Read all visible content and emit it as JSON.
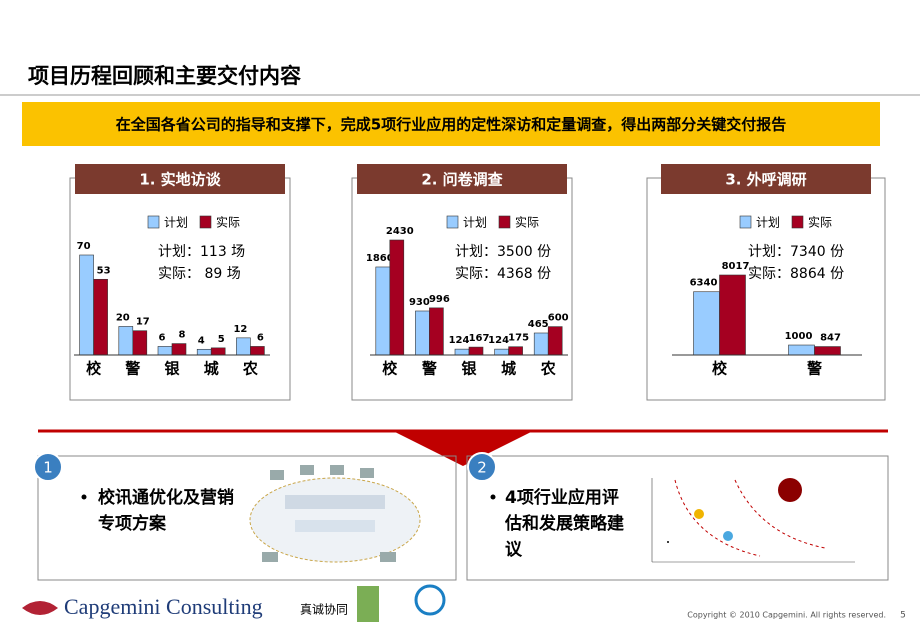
{
  "header": {
    "title": "项目历程回顾和主要交付内容"
  },
  "banner": "在全国各省公司的指导和支撑下，完成5项行业应用的定性深访和定量调查，得出两部分关键交付报告",
  "chart_data": [
    {
      "type": "bar",
      "title": "1. 实地访谈",
      "categories": [
        "校",
        "警",
        "银",
        "城",
        "农"
      ],
      "series": [
        {
          "name": "计划",
          "color": "#99ccff",
          "values": [
            70,
            20,
            6,
            4,
            12
          ]
        },
        {
          "name": "实际",
          "color": "#a50021",
          "values": [
            53,
            17,
            8,
            5,
            6
          ]
        }
      ],
      "summary": [
        "计划：113 场",
        "实际：  89 场"
      ]
    },
    {
      "type": "bar",
      "title": "2. 问卷调查",
      "categories": [
        "校",
        "警",
        "银",
        "城",
        "农"
      ],
      "series": [
        {
          "name": "计划",
          "color": "#99ccff",
          "values": [
            1860,
            930,
            124,
            124,
            465
          ]
        },
        {
          "name": "实际",
          "color": "#a50021",
          "values": [
            2430,
            996,
            167,
            175,
            600
          ]
        }
      ],
      "summary": [
        "计划：3500 份",
        "实际：4368 份"
      ]
    },
    {
      "type": "bar",
      "title": "3. 外呼调研",
      "categories": [
        "校",
        "警"
      ],
      "series": [
        {
          "name": "计划",
          "color": "#99ccff",
          "values": [
            6340,
            1000
          ]
        },
        {
          "name": "实际",
          "color": "#a50021",
          "values": [
            8017,
            847
          ]
        }
      ],
      "summary": [
        "计划：7340 份",
        "实际：8864 份"
      ]
    }
  ],
  "deliverables": [
    {
      "number": "1",
      "text": "校讯通优化及营销专项方案"
    },
    {
      "number": "2",
      "text": "4项行业应用评估和发展策略建议"
    }
  ],
  "footer": {
    "brand": "Capgemini Consulting",
    "slogan": "真诚协同",
    "copyright": "Copyright © 2010 Capgemini. All rights reserved.",
    "page": "5"
  }
}
